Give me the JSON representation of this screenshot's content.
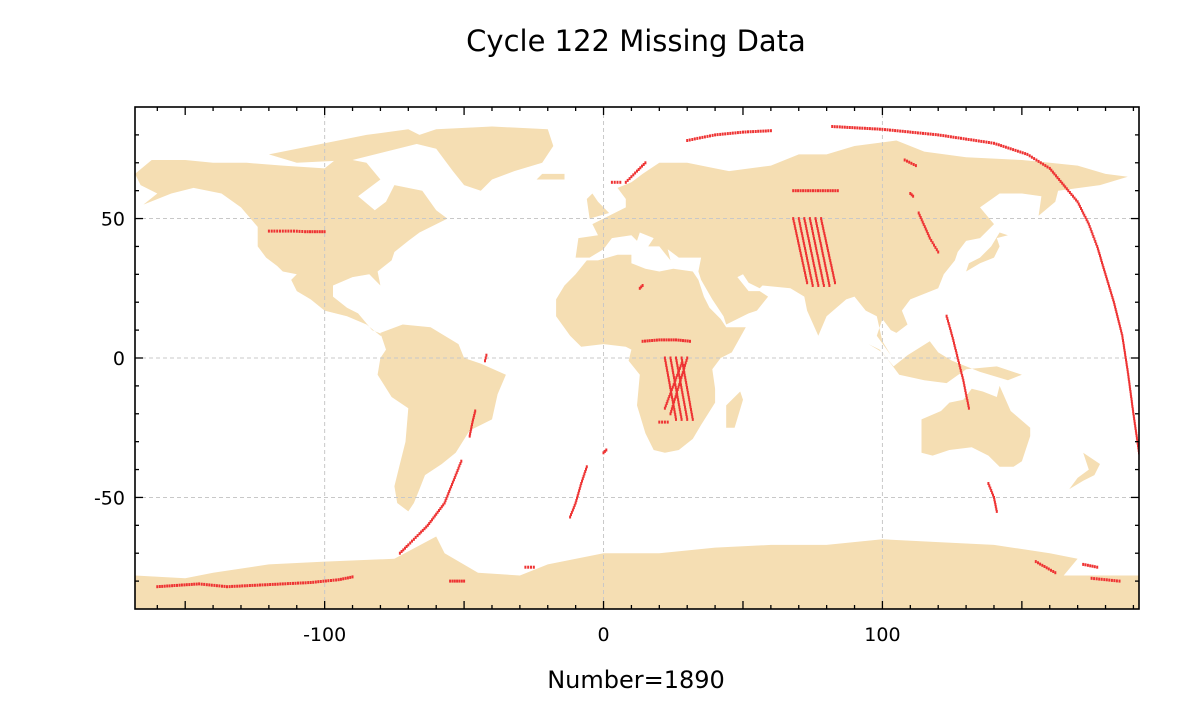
{
  "title": "Cycle 122 Missing Data",
  "xlabel": "Number=1890",
  "colors": {
    "land": "#f5deb3",
    "points": "#ee3333",
    "grid": "#c8c8c8",
    "frame": "#000000"
  },
  "chart_data": {
    "type": "scatter",
    "projection": "plate-carree",
    "xlim": [
      -168,
      192
    ],
    "ylim": [
      -90,
      90
    ],
    "xticks": [
      -100,
      0,
      100
    ],
    "yticks": [
      -50,
      0,
      50
    ],
    "grid": true,
    "missing_count": 1890,
    "tracks": [
      {
        "segments": [
          [
            [
              -120,
              45.5
            ],
            [
              -117,
              45.5
            ],
            [
              -114,
              45.5
            ],
            [
              -111,
              45.5
            ],
            [
              -107,
              45.3
            ],
            [
              -100,
              45.3
            ]
          ]
        ]
      },
      {
        "segments": [
          [
            [
              -42,
              1
            ],
            [
              -42.5,
              -1
            ]
          ],
          [
            [
              -46,
              -19
            ],
            [
              -47,
              -23
            ],
            [
              -48,
              -28
            ]
          ]
        ]
      },
      {
        "segments": [
          [
            [
              -51,
              -37
            ],
            [
              -53,
              -42
            ],
            [
              -55,
              -47
            ],
            [
              -57,
              -52
            ],
            [
              -60,
              -56
            ],
            [
              -63,
              -60
            ],
            [
              -66,
              -63
            ],
            [
              -70,
              -67
            ],
            [
              -73,
              -70
            ]
          ]
        ]
      },
      {
        "segments": [
          [
            [
              -160,
              -82
            ],
            [
              -145,
              -81
            ],
            [
              -135,
              -82
            ],
            [
              -125,
              -81.5
            ],
            [
              -115,
              -81
            ],
            [
              -105,
              -80.5
            ],
            [
              -95,
              -79.5
            ],
            [
              -90,
              -78.5
            ]
          ]
        ]
      },
      {
        "segments": [
          [
            [
              -55,
              -80
            ],
            [
              -50,
              -80
            ]
          ],
          [
            [
              -28,
              -75
            ],
            [
              -25,
              -75
            ]
          ]
        ]
      },
      {
        "segments": [
          [
            [
              -6,
              -39
            ],
            [
              -8,
              -45
            ],
            [
              -10,
              -52
            ],
            [
              -12,
              -57
            ]
          ],
          [
            [
              1,
              -33
            ],
            [
              0,
              -34
            ]
          ]
        ]
      },
      {
        "segments": [
          [
            [
              8,
              63
            ],
            [
              12,
              67
            ],
            [
              15,
              70
            ]
          ],
          [
            [
              3,
              63
            ],
            [
              6,
              63
            ]
          ]
        ]
      },
      {
        "segments": [
          [
            [
              30,
              78
            ],
            [
              40,
              80
            ],
            [
              50,
              81
            ],
            [
              60,
              81.5
            ]
          ]
        ]
      },
      {
        "segments": [
          [
            [
              82,
              83
            ],
            [
              100,
              82
            ],
            [
              120,
              80
            ],
            [
              140,
              77
            ],
            [
              152,
              73
            ],
            [
              160,
              68
            ],
            [
              165,
              62
            ],
            [
              170,
              56
            ],
            [
              174,
              48
            ],
            [
              177,
              40
            ],
            [
              180,
              30
            ],
            [
              183,
              20
            ],
            [
              186,
              8
            ],
            [
              188,
              -5
            ],
            [
              190,
              -20
            ],
            [
              192,
              -34
            ]
          ]
        ]
      },
      {
        "segments": [
          [
            [
              14,
              6
            ],
            [
              20,
              6.5
            ],
            [
              26,
              6.5
            ],
            [
              31,
              6
            ]
          ],
          [
            [
              20,
              -23
            ],
            [
              23,
              -23
            ]
          ],
          [
            [
              13,
              25
            ],
            [
              14,
              26
            ]
          ]
        ]
      },
      {
        "segments": [
          [
            [
              22,
              0
            ],
            [
              26,
              -22
            ]
          ],
          [
            [
              24,
              0
            ],
            [
              28,
              -22
            ]
          ],
          [
            [
              26,
              0
            ],
            [
              30,
              -22
            ]
          ],
          [
            [
              28,
              0
            ],
            [
              32,
              -22
            ]
          ],
          [
            [
              30,
              0
            ],
            [
              24,
              -20
            ]
          ],
          [
            [
              28,
              -2
            ],
            [
              22,
              -18
            ]
          ]
        ]
      },
      {
        "segments": [
          [
            [
              68,
              60
            ],
            [
              84,
              60
            ]
          ],
          [
            [
              68,
              50
            ],
            [
              73,
              27
            ]
          ],
          [
            [
              70,
              50
            ],
            [
              75,
              26
            ]
          ],
          [
            [
              72,
              50
            ],
            [
              77,
              26
            ]
          ],
          [
            [
              74,
              50
            ],
            [
              79,
              26
            ]
          ],
          [
            [
              76,
              50
            ],
            [
              81,
              26
            ]
          ],
          [
            [
              78,
              50
            ],
            [
              83,
              27
            ]
          ]
        ]
      },
      {
        "segments": [
          [
            [
              110,
              59
            ],
            [
              111,
              58
            ]
          ],
          [
            [
              113,
              52
            ],
            [
              117,
              43
            ],
            [
              120,
              38
            ]
          ],
          [
            [
              108,
              71
            ],
            [
              112,
              69
            ]
          ]
        ]
      },
      {
        "segments": [
          [
            [
              123,
              15
            ],
            [
              125,
              8
            ],
            [
              127,
              0
            ],
            [
              129,
              -8
            ],
            [
              131,
              -18
            ]
          ],
          [
            [
              138,
              -45
            ],
            [
              140,
              -50
            ],
            [
              141,
              -55
            ]
          ]
        ]
      },
      {
        "segments": [
          [
            [
              155,
              -73
            ],
            [
              162,
              -77
            ]
          ],
          [
            [
              172,
              -74
            ],
            [
              177,
              -75
            ]
          ],
          [
            [
              175,
              -79
            ],
            [
              185,
              -80
            ]
          ]
        ]
      }
    ]
  }
}
